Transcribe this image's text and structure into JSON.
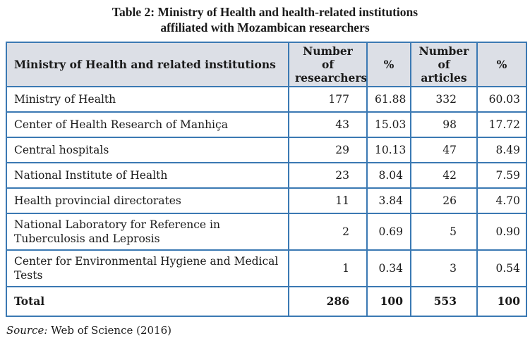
{
  "caption": {
    "line1": "Table 2: Ministry of Health and health-related institutions",
    "line2": "affiliated with Mozambican researchers"
  },
  "table": {
    "headers": [
      "Ministry of Health and related institutions",
      "Number of researchers",
      "%",
      "Number of articles",
      "%"
    ],
    "rows": [
      {
        "institution": "Ministry of Health",
        "researchers": "177",
        "researchers_pct": "61.88",
        "articles": "332",
        "articles_pct": "60.03"
      },
      {
        "institution": "Center of Health Research of Manhiça",
        "researchers": "43",
        "researchers_pct": "15.03",
        "articles": "98",
        "articles_pct": "17.72"
      },
      {
        "institution": "Central hospitals",
        "researchers": "29",
        "researchers_pct": "10.13",
        "articles": "47",
        "articles_pct": "8.49"
      },
      {
        "institution": "National Institute of Health",
        "researchers": "23",
        "researchers_pct": "8.04",
        "articles": "42",
        "articles_pct": "7.59"
      },
      {
        "institution": "Health provincial directorates",
        "researchers": "11",
        "researchers_pct": "3.84",
        "articles": "26",
        "articles_pct": "4.70"
      },
      {
        "institution": "National Laboratory for Reference in Tuberculosis and Leprosis",
        "researchers": "2",
        "researchers_pct": "0.69",
        "articles": "5",
        "articles_pct": "0.90"
      },
      {
        "institution": "Center for Environmental Hygiene and Medical Tests",
        "researchers": "1",
        "researchers_pct": "0.34",
        "articles": "3",
        "articles_pct": "0.54"
      }
    ],
    "total": {
      "label": "Total",
      "researchers": "286",
      "researchers_pct": "100",
      "articles": "553",
      "articles_pct": "100"
    }
  },
  "source": {
    "label": "Source:",
    "text": "Web of Science (2016)"
  },
  "colors": {
    "border": "#3b79b3",
    "header_bg": "#dcdfe6"
  }
}
